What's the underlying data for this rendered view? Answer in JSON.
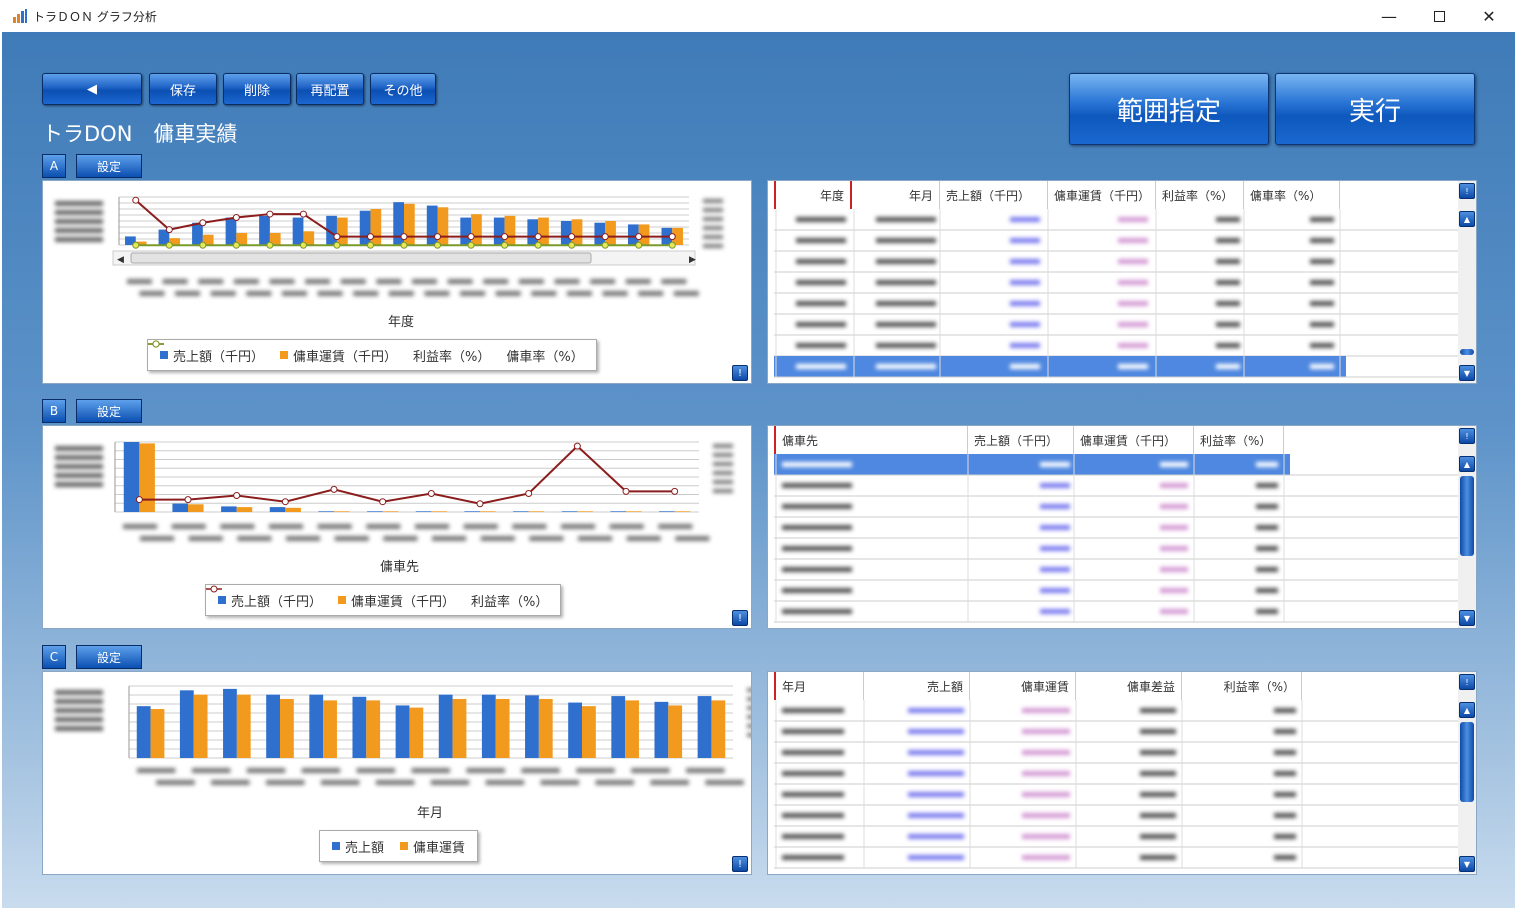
{
  "window": {
    "title": "トラＤＯＮ グラフ分析"
  },
  "toolbar": {
    "back": "◀",
    "save": "保存",
    "delete": "削除",
    "rearrange": "再配置",
    "other": "その他"
  },
  "actions": {
    "range": "範囲指定",
    "execute": "実行"
  },
  "page_title": "トラDON　傭車実績",
  "settings_label": "設定",
  "info_glyph": "!",
  "colors": {
    "sales": "#2f6fcd",
    "fare": "#f29a1d",
    "profit": "#8b1d1d",
    "ratio": "#7a9a2a",
    "selection": "#4f88e0"
  },
  "sections": [
    {
      "label": "A",
      "xlabel": "年度",
      "legend": [
        "売上額（千円）",
        "傭車運賃（千円）",
        "利益率（%）",
        "傭車率（%）"
      ],
      "grid_headers": [
        "年度",
        "年月",
        "売上額（千円）",
        "傭車運賃（千円）",
        "利益率（%）",
        "傭車率（%）"
      ],
      "chart_data": {
        "type": "bar",
        "series": [
          {
            "name": "売上額（千円）",
            "values": [
              5,
              9,
              13,
              16,
              17,
              16,
              17,
              20,
              25,
              23,
              16,
              16,
              15,
              14,
              13,
              12,
              10
            ]
          },
          {
            "name": "傭車運賃（千円）",
            "values": [
              2,
              4,
              6,
              7,
              7,
              8,
              16,
              21,
              24,
              22,
              18,
              17,
              16,
              15,
              14,
              12,
              10
            ]
          },
          {
            "name": "利益率（%）",
            "values": [
              27,
              10,
              14,
              17,
              19,
              19,
              6,
              6,
              6,
              6,
              6,
              6,
              6,
              6,
              6,
              6,
              6
            ]
          },
          {
            "name": "傭車率（%）",
            "values": [
              1,
              1,
              1,
              1,
              1,
              1,
              1,
              1,
              1,
              1,
              1,
              1,
              1,
              1,
              1,
              1,
              1
            ]
          }
        ]
      }
    },
    {
      "label": "B",
      "xlabel": "傭車先",
      "legend": [
        "売上額（千円）",
        "傭車運賃（千円）",
        "利益率（%）"
      ],
      "grid_headers": [
        "傭車先",
        "売上額（千円）",
        "傭車運賃（千円）",
        "利益率（%）"
      ],
      "chart_data": {
        "type": "bar",
        "series": [
          {
            "name": "売上額（千円）",
            "values": [
              100,
              12,
              8,
              7,
              1,
              1,
              1,
              1,
              1,
              1,
              1,
              1
            ]
          },
          {
            "name": "傭車運賃（千円）",
            "values": [
              98,
              11,
              7,
              6,
              1,
              1,
              1,
              1,
              1,
              1,
              1,
              1
            ]
          },
          {
            "name": "利益率（%）",
            "values": [
              6,
              6,
              8,
              5,
              11,
              5,
              9,
              4,
              9,
              32,
              10,
              10
            ]
          }
        ]
      }
    },
    {
      "label": "C",
      "xlabel": "年月",
      "legend": [
        "売上額",
        "傭車運賃"
      ],
      "grid_headers": [
        "年月",
        "売上額",
        "傭車運賃",
        "傭車差益",
        "利益率（%）"
      ],
      "chart_data": {
        "type": "bar",
        "series": [
          {
            "name": "売上額",
            "values": [
              72,
              94,
              96,
              88,
              88,
              85,
              73,
              88,
              88,
              87,
              77,
              86,
              78,
              86
            ]
          },
          {
            "name": "傭車運賃",
            "values": [
              68,
              88,
              88,
              82,
              80,
              80,
              70,
              82,
              82,
              82,
              72,
              80,
              73,
              80
            ]
          }
        ]
      }
    }
  ]
}
